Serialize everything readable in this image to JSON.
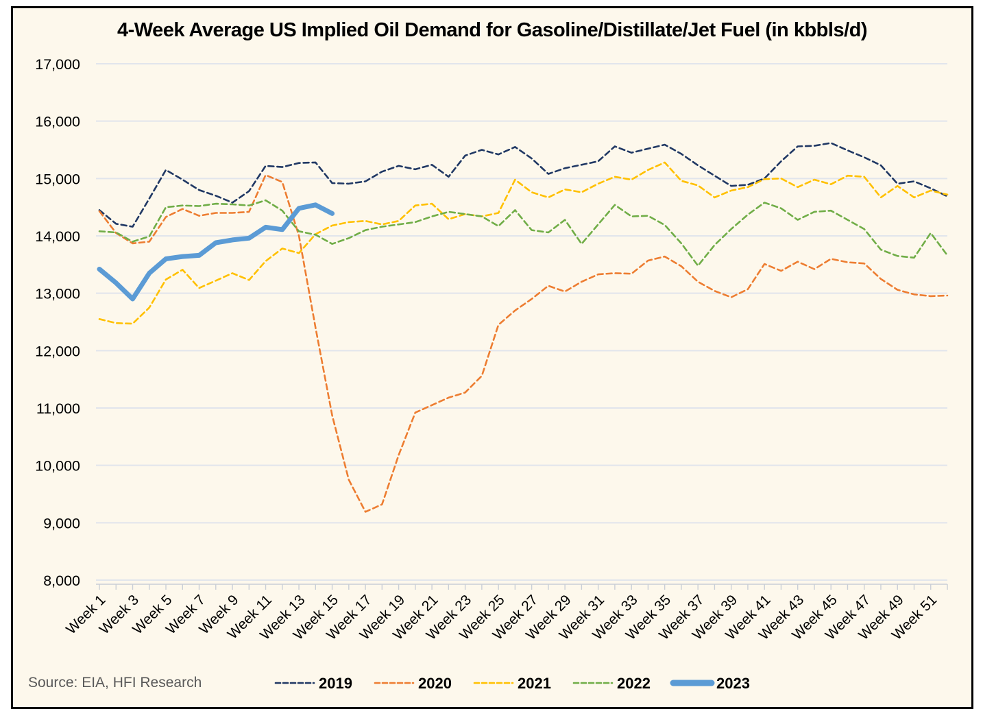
{
  "title": "4-Week Average US Implied Oil Demand for Gasoline/Distillate/Jet Fuel (in kbbls/d)",
  "source_note": "Source: EIA, HFI Research",
  "colors": {
    "background": "#FDF8EC",
    "frame_border": "#000000",
    "gridline": "#E1E5EC",
    "axis": "#C9CED6",
    "tick_label": "#000000",
    "source_text": "#595959"
  },
  "chart_data": {
    "type": "line",
    "title": "4-Week Average US Implied Oil Demand for Gasoline/Distillate/Jet Fuel (in kbbls/d)",
    "xlabel": "",
    "ylabel": "",
    "x_weeks": 52,
    "x_tick_labels": [
      "Week 1",
      "Week 3",
      "Week 5",
      "Week 7",
      "Week 9",
      "Week 11",
      "Week 13",
      "Week 15",
      "Week 17",
      "Week 19",
      "Week 21",
      "Week 23",
      "Week 25",
      "Week 27",
      "Week 29",
      "Week 31",
      "Week 33",
      "Week 35",
      "Week 37",
      "Week 39",
      "Week 41",
      "Week 43",
      "Week 45",
      "Week 47",
      "Week 49",
      "Week 51"
    ],
    "ylim": [
      8000,
      17000
    ],
    "y_tick_step": 1000,
    "y_tick_labels": [
      "8,000",
      "9,000",
      "10,000",
      "11,000",
      "12,000",
      "13,000",
      "14,000",
      "15,000",
      "16,000",
      "17,000"
    ],
    "grid": true,
    "legend_position": "bottom",
    "series": [
      {
        "name": "2019",
        "color": "#203864",
        "style": "dashed",
        "width": 2.6,
        "values": [
          14450,
          14210,
          14160,
          14650,
          15150,
          14980,
          14800,
          14700,
          14580,
          14780,
          15220,
          15200,
          15270,
          15280,
          14920,
          14910,
          14950,
          15120,
          15220,
          15160,
          15240,
          15030,
          15400,
          15500,
          15420,
          15550,
          15350,
          15080,
          15180,
          15240,
          15300,
          15560,
          15450,
          15520,
          15590,
          15430,
          15230,
          15050,
          14870,
          14890,
          15000,
          15300,
          15560,
          15570,
          15620,
          15490,
          15370,
          15230,
          14910,
          14950,
          14830,
          14690
        ]
      },
      {
        "name": "2020",
        "color": "#ED7D31",
        "style": "dashed",
        "width": 2.6,
        "values": [
          14430,
          14050,
          13870,
          13900,
          14330,
          14470,
          14350,
          14400,
          14400,
          14420,
          15060,
          14940,
          14000,
          12400,
          10870,
          9750,
          9190,
          9320,
          10180,
          10920,
          11050,
          11180,
          11270,
          11560,
          12450,
          12700,
          12900,
          13130,
          13030,
          13200,
          13330,
          13350,
          13340,
          13570,
          13640,
          13470,
          13200,
          13040,
          12930,
          13070,
          13510,
          13390,
          13550,
          13420,
          13600,
          13540,
          13520,
          13250,
          13060,
          12980,
          12950,
          12960
        ]
      },
      {
        "name": "2021",
        "color": "#FFC000",
        "style": "dashed",
        "width": 2.6,
        "values": [
          12550,
          12480,
          12470,
          12750,
          13240,
          13410,
          13090,
          13220,
          13350,
          13230,
          13560,
          13780,
          13700,
          14030,
          14180,
          14240,
          14260,
          14200,
          14260,
          14530,
          14560,
          14290,
          14380,
          14340,
          14400,
          14980,
          14760,
          14670,
          14810,
          14760,
          14910,
          15030,
          14980,
          15150,
          15280,
          14960,
          14880,
          14670,
          14790,
          14850,
          14990,
          15000,
          14850,
          14980,
          14900,
          15050,
          15030,
          14670,
          14870,
          14670,
          14790,
          14720
        ]
      },
      {
        "name": "2022",
        "color": "#70AD47",
        "style": "dashed",
        "width": 2.6,
        "values": [
          14080,
          14060,
          13900,
          13990,
          14500,
          14530,
          14520,
          14560,
          14550,
          14530,
          14620,
          14440,
          14080,
          14020,
          13860,
          13960,
          14100,
          14160,
          14200,
          14240,
          14340,
          14420,
          14380,
          14340,
          14170,
          14450,
          14100,
          14060,
          14280,
          13860,
          14200,
          14540,
          14340,
          14350,
          14190,
          13870,
          13480,
          13840,
          14120,
          14370,
          14580,
          14480,
          14280,
          14420,
          14440,
          14280,
          14120,
          13760,
          13650,
          13620,
          14050,
          13660
        ]
      },
      {
        "name": "2023",
        "color": "#5B9BD5",
        "style": "solid",
        "width": 7,
        "values": [
          13420,
          13180,
          12900,
          13350,
          13600,
          13640,
          13660,
          13880,
          13930,
          13960,
          14150,
          14110,
          14480,
          14540,
          14390
        ]
      }
    ]
  }
}
